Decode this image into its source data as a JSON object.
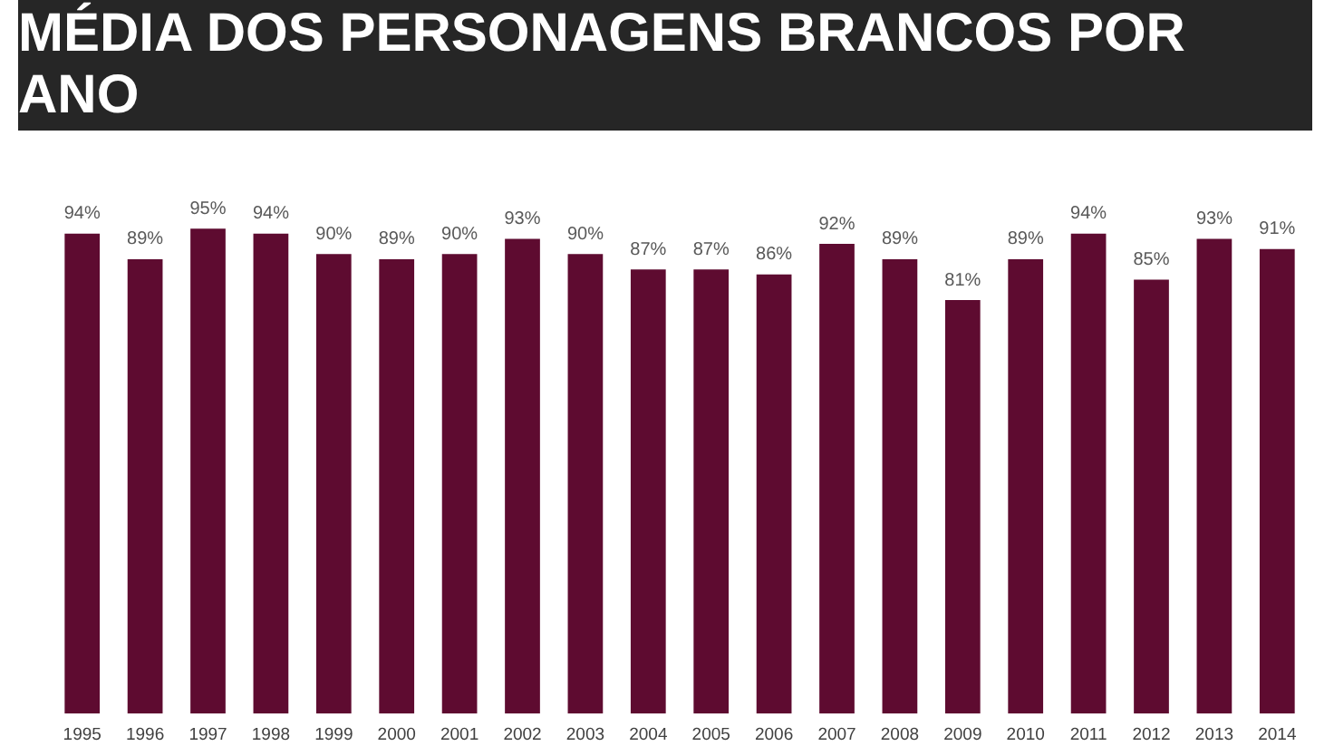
{
  "chart_data": {
    "type": "bar",
    "title": "MÉDIA DOS PERSONAGENS BRANCOS POR ANO",
    "categories": [
      "1995",
      "1996",
      "1997",
      "1998",
      "1999",
      "2000",
      "2001",
      "2002",
      "2003",
      "2004",
      "2005",
      "2006",
      "2007",
      "2008",
      "2009",
      "2010",
      "2011",
      "2012",
      "2013",
      "2014"
    ],
    "values": [
      94,
      89,
      95,
      94,
      90,
      89,
      90,
      93,
      90,
      87,
      87,
      86,
      92,
      89,
      81,
      89,
      94,
      85,
      93,
      91
    ],
    "value_labels": [
      "94%",
      "89%",
      "95%",
      "94%",
      "90%",
      "89%",
      "90%",
      "93%",
      "90%",
      "87%",
      "87%",
      "86%",
      "92%",
      "89%",
      "81%",
      "89%",
      "94%",
      "85%",
      "93%",
      "91%"
    ],
    "color": "#5e0b30",
    "grid": false,
    "legend": false,
    "tick_labels": "x"
  }
}
